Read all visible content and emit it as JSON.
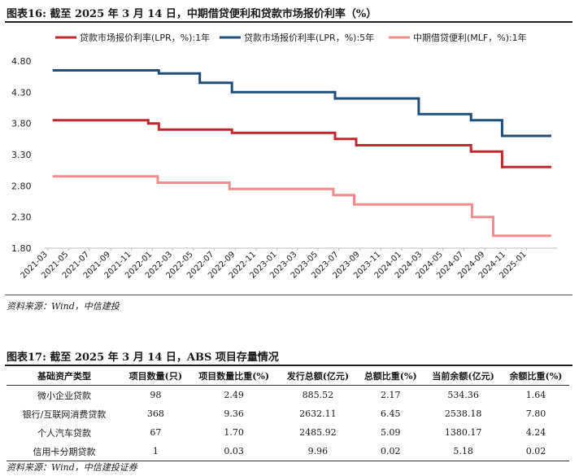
{
  "figure1": {
    "title": "图表16:  截至 2025 年 3 月 14 日，中期借贷便利和贷款市场报价利率（%）",
    "source": "资料来源：Wind，中信建投"
  },
  "chart_data": {
    "type": "line",
    "title": "",
    "xlabel": "",
    "ylabel": "",
    "ylim": [
      1.8,
      4.8
    ],
    "yticks": [
      "4.80",
      "4.30",
      "3.80",
      "3.30",
      "2.80",
      "2.30",
      "1.80"
    ],
    "xticks": [
      "2021-03",
      "2021-05",
      "2021-07",
      "2021-09",
      "2021-11",
      "2022-01",
      "2022-03",
      "2022-05",
      "2022-07",
      "2022-09",
      "2022-11",
      "2023-01",
      "2023-03",
      "2023-05",
      "2023-07",
      "2023-09",
      "2023-11",
      "2024-01",
      "2024-03",
      "2024-05",
      "2024-07",
      "2024-09",
      "2024-11",
      "2025-01"
    ],
    "legend_position": "top",
    "grid": false,
    "series": [
      {
        "name": "贷款市场报价利率(LPR，%):1年",
        "color": "#c0282d",
        "points": [
          [
            "2021-03-15",
            3.85
          ],
          [
            "2021-12-20",
            3.85
          ],
          [
            "2021-12-20",
            3.8
          ],
          [
            "2022-01-20",
            3.8
          ],
          [
            "2022-01-20",
            3.7
          ],
          [
            "2022-08-22",
            3.7
          ],
          [
            "2022-08-22",
            3.65
          ],
          [
            "2023-06-20",
            3.65
          ],
          [
            "2023-06-20",
            3.55
          ],
          [
            "2023-08-21",
            3.55
          ],
          [
            "2023-08-21",
            3.45
          ],
          [
            "2024-07-22",
            3.45
          ],
          [
            "2024-07-22",
            3.35
          ],
          [
            "2024-10-21",
            3.35
          ],
          [
            "2024-10-21",
            3.1
          ],
          [
            "2025-03-14",
            3.1
          ]
        ]
      },
      {
        "name": "贷款市场报价利率(LPR，%):5年",
        "color": "#1f4e79",
        "points": [
          [
            "2021-03-15",
            4.65
          ],
          [
            "2022-01-20",
            4.65
          ],
          [
            "2022-01-20",
            4.6
          ],
          [
            "2022-05-20",
            4.6
          ],
          [
            "2022-05-20",
            4.45
          ],
          [
            "2022-08-22",
            4.45
          ],
          [
            "2022-08-22",
            4.3
          ],
          [
            "2023-06-20",
            4.3
          ],
          [
            "2023-06-20",
            4.2
          ],
          [
            "2024-02-20",
            4.2
          ],
          [
            "2024-02-20",
            3.95
          ],
          [
            "2024-07-22",
            3.95
          ],
          [
            "2024-07-22",
            3.85
          ],
          [
            "2024-10-21",
            3.85
          ],
          [
            "2024-10-21",
            3.6
          ],
          [
            "2025-03-14",
            3.6
          ]
        ]
      },
      {
        "name": "中期借贷便利(MLF，%):1年",
        "color": "#f08e8e",
        "points": [
          [
            "2021-03-15",
            2.95
          ],
          [
            "2022-01-17",
            2.95
          ],
          [
            "2022-01-17",
            2.85
          ],
          [
            "2022-08-15",
            2.85
          ],
          [
            "2022-08-15",
            2.75
          ],
          [
            "2023-06-15",
            2.75
          ],
          [
            "2023-06-15",
            2.65
          ],
          [
            "2023-08-15",
            2.65
          ],
          [
            "2023-08-15",
            2.5
          ],
          [
            "2024-07-25",
            2.5
          ],
          [
            "2024-07-25",
            2.3
          ],
          [
            "2024-09-25",
            2.3
          ],
          [
            "2024-09-25",
            2.0
          ],
          [
            "2025-03-14",
            2.0
          ]
        ]
      }
    ]
  },
  "figure2": {
    "title": "图表17:  截至 2025 年 3 月 14 日，ABS 项目存量情况",
    "source": "资料来源：Wind，中信建投证券",
    "headers": [
      "基础资产类型",
      "项目数量(只)",
      "项目数量比重(%)",
      "发行总额(亿元)",
      "总额比重(%)",
      "当前余额(亿元)",
      "余额比重(%)"
    ],
    "rows": [
      [
        "微小企业贷款",
        "98",
        "2.49",
        "885.52",
        "2.17",
        "534.36",
        "1.64"
      ],
      [
        "银行/互联网消费贷款",
        "368",
        "9.36",
        "2632.11",
        "6.45",
        "2538.18",
        "7.80"
      ],
      [
        "个人汽车贷款",
        "67",
        "1.70",
        "2485.92",
        "5.09",
        "1380.17",
        "4.24"
      ],
      [
        "信用卡分期贷款",
        "1",
        "0.03",
        "9.96",
        "0.02",
        "5.18",
        "0.02"
      ]
    ]
  }
}
